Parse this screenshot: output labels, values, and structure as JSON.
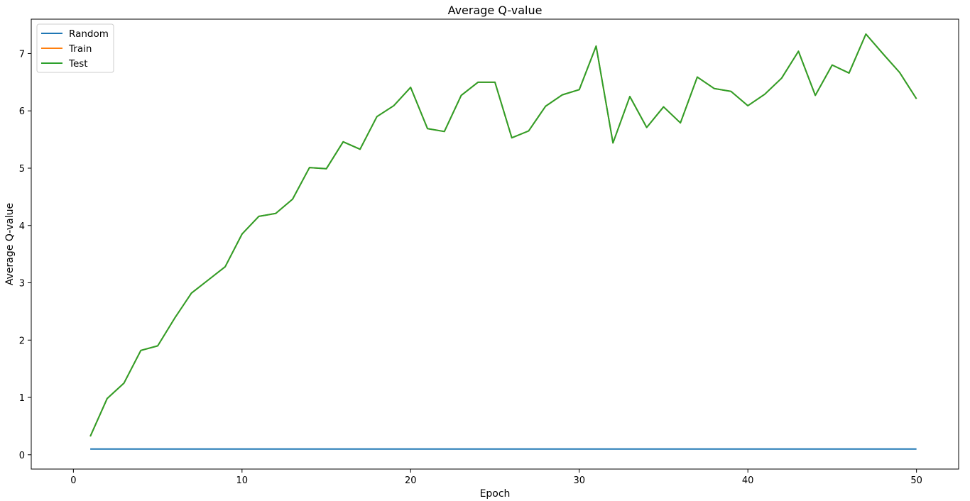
{
  "chart_data": {
    "type": "line",
    "title": "Average Q-value",
    "xlabel": "Epoch",
    "ylabel": "Average Q-value",
    "xlim": [
      -2.5,
      52.5
    ],
    "ylim": [
      -0.25,
      7.6
    ],
    "xticks": [
      0,
      10,
      20,
      30,
      40,
      50
    ],
    "yticks": [
      0,
      1,
      2,
      3,
      4,
      5,
      6,
      7
    ],
    "grid": false,
    "legend_position": "top-left",
    "x": [
      1,
      2,
      3,
      4,
      5,
      6,
      7,
      8,
      9,
      10,
      11,
      12,
      13,
      14,
      15,
      16,
      17,
      18,
      19,
      20,
      21,
      22,
      23,
      24,
      25,
      26,
      27,
      28,
      29,
      30,
      31,
      32,
      33,
      34,
      35,
      36,
      37,
      38,
      39,
      40,
      41,
      42,
      43,
      44,
      45,
      46,
      47,
      48,
      49,
      50
    ],
    "series": [
      {
        "name": "Random",
        "color": "#1f77b4",
        "values": [
          0.1,
          0.1,
          0.1,
          0.1,
          0.1,
          0.1,
          0.1,
          0.1,
          0.1,
          0.1,
          0.1,
          0.1,
          0.1,
          0.1,
          0.1,
          0.1,
          0.1,
          0.1,
          0.1,
          0.1,
          0.1,
          0.1,
          0.1,
          0.1,
          0.1,
          0.1,
          0.1,
          0.1,
          0.1,
          0.1,
          0.1,
          0.1,
          0.1,
          0.1,
          0.1,
          0.1,
          0.1,
          0.1,
          0.1,
          0.1,
          0.1,
          0.1,
          0.1,
          0.1,
          0.1,
          0.1,
          0.1,
          0.1,
          0.1,
          0.1
        ]
      },
      {
        "name": "Train",
        "color": "#ff7f0e",
        "values": [
          0.32,
          0.98,
          1.25,
          1.82,
          1.9,
          2.38,
          2.82,
          3.05,
          3.28,
          3.85,
          4.16,
          4.21,
          4.46,
          5.01,
          4.99,
          5.46,
          5.33,
          5.9,
          6.09,
          6.41,
          5.69,
          5.64,
          6.27,
          6.5,
          6.5,
          5.53,
          5.65,
          6.08,
          6.28,
          6.37,
          7.13,
          5.44,
          6.25,
          5.71,
          6.07,
          5.79,
          6.59,
          6.39,
          6.34,
          6.09,
          6.29,
          6.57,
          7.04,
          6.27,
          6.8,
          6.66,
          7.34,
          7.0,
          6.67,
          6.21
        ]
      },
      {
        "name": "Test",
        "color": "#2ca02c",
        "values": [
          0.32,
          0.98,
          1.25,
          1.82,
          1.9,
          2.38,
          2.82,
          3.05,
          3.28,
          3.85,
          4.16,
          4.21,
          4.46,
          5.01,
          4.99,
          5.46,
          5.33,
          5.9,
          6.09,
          6.41,
          5.69,
          5.64,
          6.27,
          6.5,
          6.5,
          5.53,
          5.65,
          6.08,
          6.28,
          6.37,
          7.13,
          5.44,
          6.25,
          5.71,
          6.07,
          5.79,
          6.59,
          6.39,
          6.34,
          6.09,
          6.29,
          6.57,
          7.04,
          6.27,
          6.8,
          6.66,
          7.34,
          7.0,
          6.67,
          6.21
        ]
      }
    ]
  }
}
